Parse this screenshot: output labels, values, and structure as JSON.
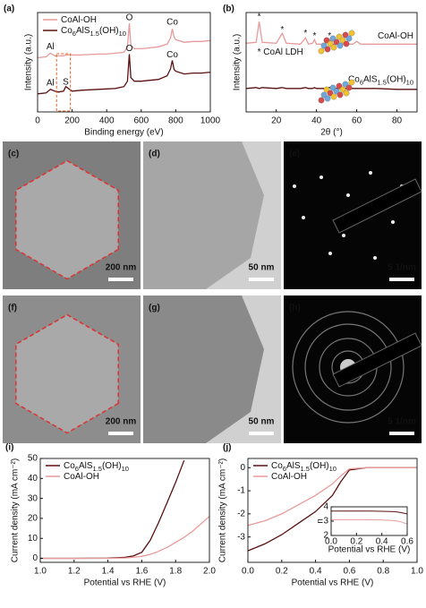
{
  "chart_data": [
    {
      "type": "line",
      "panel": "(a)",
      "xlabel": "Binding energy (eV)",
      "ylabel": "Intensity (a.u.)",
      "xlim": [
        0,
        1000
      ],
      "xticks": [
        0,
        200,
        400,
        600,
        800,
        1000
      ],
      "ylim": [
        0,
        11
      ],
      "x": [
        0,
        50,
        74,
        100,
        120,
        150,
        163,
        200,
        250,
        300,
        350,
        400,
        450,
        500,
        520,
        531,
        540,
        560,
        600,
        650,
        700,
        750,
        770,
        780,
        790,
        800,
        850,
        900,
        950,
        1000
      ],
      "series": [
        {
          "name": "CoAl-OH",
          "color": "#e89a9a",
          "values": [
            6.0,
            6.1,
            6.5,
            6.2,
            6.2,
            6.2,
            6.3,
            6.3,
            6.3,
            6.35,
            6.4,
            6.4,
            6.5,
            6.6,
            7.2,
            9.8,
            7.4,
            7.0,
            7.0,
            7.1,
            7.2,
            7.5,
            8.2,
            9.2,
            8.3,
            8.0,
            7.7,
            7.8,
            7.8,
            7.9
          ]
        },
        {
          "name": "Co6AlS1.5(OH)10",
          "color": "#5a1010",
          "values": [
            2.0,
            2.1,
            2.5,
            2.3,
            2.2,
            2.3,
            2.8,
            2.3,
            2.4,
            2.45,
            2.5,
            2.55,
            2.6,
            2.8,
            3.4,
            6.4,
            3.8,
            3.4,
            3.4,
            3.5,
            3.6,
            4.0,
            4.8,
            5.7,
            4.7,
            4.5,
            4.2,
            4.3,
            4.3,
            4.4
          ]
        }
      ],
      "annotations": [
        "Al",
        "O",
        "Co",
        "Al",
        "S",
        "O",
        "Co"
      ],
      "legend": "upper left"
    },
    {
      "type": "line",
      "panel": "(b)",
      "xlabel": "2θ (°)",
      "ylabel": "Intensity (a.u.)",
      "xlim": [
        5,
        90
      ],
      "xticks": [
        20,
        40,
        60,
        80
      ],
      "ylim": [
        0,
        11
      ],
      "x": [
        5,
        10,
        11.5,
        13,
        20,
        23,
        25,
        32,
        34.5,
        36,
        38,
        39,
        40,
        44,
        46.5,
        48,
        58,
        60,
        62,
        70,
        80,
        90
      ],
      "series": [
        {
          "name": "CoAl-OH",
          "color": "#e89a9a",
          "values": [
            7.6,
            7.7,
            10.0,
            7.7,
            7.6,
            8.7,
            7.6,
            7.5,
            8.2,
            7.5,
            7.6,
            8.0,
            7.5,
            7.5,
            8.0,
            7.5,
            7.5,
            7.8,
            7.5,
            7.5,
            7.5,
            7.5
          ]
        },
        {
          "name": "Co6AlS1.5(OH)10",
          "color": "#5a1010",
          "values": [
            2.6,
            2.7,
            2.6,
            2.7,
            2.6,
            2.7,
            2.6,
            2.6,
            2.7,
            2.6,
            2.6,
            2.7,
            2.6,
            2.6,
            2.7,
            2.6,
            2.6,
            2.6,
            2.6,
            2.6,
            2.5,
            2.5
          ]
        }
      ],
      "annotations": [
        "*",
        "*",
        "*",
        "*",
        "*",
        "* CoAl LDH"
      ],
      "legend": "inline"
    },
    {
      "type": "line",
      "panel": "(i)",
      "xlabel": "Potential vs RHE (V)",
      "ylabel": "Current density (mA cm⁻²)",
      "xlim": [
        1,
        2
      ],
      "xticks": [
        {
          "value": 1,
          "label": "1.0"
        },
        1.2,
        1.4,
        1.6,
        1.8,
        {
          "value": 2,
          "label": "2.0"
        }
      ],
      "ylim": [
        -2,
        50
      ],
      "yticks": [
        0,
        10,
        20,
        30,
        40,
        50
      ],
      "x": [
        1,
        1.2,
        1.4,
        1.5,
        1.55,
        1.6,
        1.65,
        1.7,
        1.75,
        1.8,
        1.85,
        1.9,
        2.0
      ],
      "series": [
        {
          "name": "Co6AlS1.5(OH)10",
          "color": "#5a1010",
          "values": [
            0,
            0,
            0.1,
            0.5,
            1.2,
            3,
            9,
            18,
            28,
            38,
            49,
            null,
            null
          ]
        },
        {
          "name": "CoAl-OH",
          "color": "#e89a9a",
          "values": [
            0,
            0,
            0,
            0.2,
            0.5,
            1,
            2,
            3.5,
            5.5,
            8,
            10.5,
            13.5,
            21
          ]
        }
      ],
      "legend": "upper left"
    },
    {
      "type": "line",
      "panel": "(j)",
      "xlabel": "Potential vs RHE (V)",
      "ylabel": "Current density (mA cm⁻²)",
      "xlim": [
        0,
        1
      ],
      "xticks": [
        {
          "value": 0,
          "label": "0.0"
        },
        0.2,
        0.4,
        0.6,
        0.8,
        {
          "value": 1,
          "label": "1.0"
        }
      ],
      "ylim": [
        -4.1,
        0.4
      ],
      "yticks": [
        0,
        -1,
        -2,
        -3
      ],
      "x": [
        0,
        0.1,
        0.2,
        0.3,
        0.4,
        0.5,
        0.55,
        0.6,
        0.7,
        0.8,
        1.0
      ],
      "series": [
        {
          "name": "Co6AlS1.5(OH)10",
          "color": "#5a1010",
          "values": [
            -3.6,
            -3.3,
            -2.9,
            -2.4,
            -1.9,
            -1.2,
            -0.6,
            -0.1,
            0,
            0,
            0
          ]
        },
        {
          "name": "CoAl-OH",
          "color": "#e89a9a",
          "values": [
            -2.5,
            -2.3,
            -2.0,
            -1.6,
            -1.2,
            -0.7,
            -0.35,
            -0.05,
            0,
            0,
            0
          ]
        }
      ],
      "legend": "upper left"
    },
    {
      "type": "line",
      "xlabel": "Potential vs RHE (V)",
      "ylabel": "n",
      "xlim": [
        0,
        0.6
      ],
      "xticks": [
        {
          "value": 0,
          "label": "0.0"
        },
        0.2,
        0.4,
        0.6
      ],
      "ylim": [
        2,
        4
      ],
      "yticks": [
        2,
        3,
        4
      ],
      "x": [
        0,
        0.1,
        0.2,
        0.3,
        0.4,
        0.5,
        0.55,
        0.6
      ],
      "series": [
        {
          "color": "#5a1010",
          "values": [
            3.7,
            3.7,
            3.7,
            3.7,
            3.69,
            3.66,
            3.6,
            3.5
          ]
        },
        {
          "color": "#e89a9a",
          "values": [
            3.1,
            3.1,
            3.1,
            3.1,
            3.08,
            3.04,
            2.95,
            2.8
          ]
        }
      ]
    }
  ],
  "images": [
    {
      "panel": "(c)",
      "scale_bar": "200 nm"
    },
    {
      "panel": "(d)",
      "scale_bar": "50 nm"
    },
    {
      "panel": "(e)",
      "scale_bar": "5 1/nm"
    },
    {
      "panel": "(f)",
      "scale_bar": "200 nm"
    },
    {
      "panel": "(g)",
      "scale_bar": "50 nm"
    },
    {
      "panel": "(h)",
      "scale_bar": "5 1/nm"
    }
  ]
}
